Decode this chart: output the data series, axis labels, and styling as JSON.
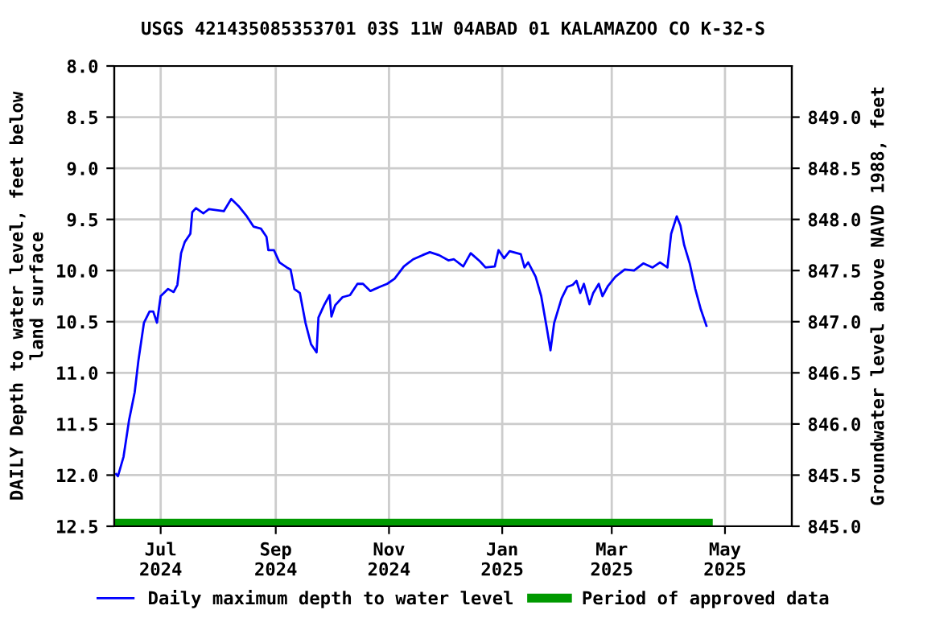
{
  "chart_data": {
    "type": "line",
    "title": "USGS 421435085353701 03S 11W 04ABAD 01 KALAMAZOO CO K-32-S",
    "ylabel": "DAILY Depth to water level, feet below\nland surface",
    "y2label": "Groundwater level above NAVD 1988, feet",
    "xlim": [
      "2024-06-06",
      "2025-06-06"
    ],
    "xticks": [
      {
        "value": "2024-07-01",
        "label": "Jul\n2024"
      },
      {
        "value": "2024-09-01",
        "label": "Sep\n2024"
      },
      {
        "value": "2024-11-01",
        "label": "Nov\n2024"
      },
      {
        "value": "2025-01-01",
        "label": "Jan\n2025"
      },
      {
        "value": "2025-03-01",
        "label": "Mar\n2025"
      },
      {
        "value": "2025-05-01",
        "label": "May\n2025"
      }
    ],
    "ylim": [
      12.5,
      8.0
    ],
    "yticks": [
      {
        "value": 8,
        "label": "8.0"
      },
      {
        "value": 8.5,
        "label": "8.5"
      },
      {
        "value": 9,
        "label": "9.0"
      },
      {
        "value": 9.5,
        "label": "9.5"
      },
      {
        "value": 10,
        "label": "10.0"
      },
      {
        "value": 10.5,
        "label": "10.5"
      },
      {
        "value": 11,
        "label": "11.0"
      },
      {
        "value": 11.5,
        "label": "11.5"
      },
      {
        "value": 12,
        "label": "12.0"
      },
      {
        "value": 12.5,
        "label": "12.5"
      }
    ],
    "y2lim": [
      845.0,
      849.5
    ],
    "y2ticks": [
      {
        "value": 845,
        "label": "845.0"
      },
      {
        "value": 845.5,
        "label": "845.5"
      },
      {
        "value": 846,
        "label": "846.0"
      },
      {
        "value": 846.5,
        "label": "846.5"
      },
      {
        "value": 847,
        "label": "847.0"
      },
      {
        "value": 847.5,
        "label": "847.5"
      },
      {
        "value": 848,
        "label": "848.0"
      },
      {
        "value": 848.5,
        "label": "848.5"
      },
      {
        "value": 849,
        "label": "849.0"
      }
    ],
    "grid": true,
    "legend": "bottom",
    "series": [
      {
        "name": "Daily maximum depth to water level",
        "color": "#0000ff",
        "x": [
          "2024-06-07",
          "2024-06-08",
          "2024-06-11",
          "2024-06-14",
          "2024-06-17",
          "2024-06-19",
          "2024-06-22",
          "2024-06-25",
          "2024-06-27",
          "2024-06-29",
          "2024-07-01",
          "2024-07-05",
          "2024-07-08",
          "2024-07-10",
          "2024-07-12",
          "2024-07-14",
          "2024-07-17",
          "2024-07-18",
          "2024-07-20",
          "2024-07-24",
          "2024-07-27",
          "2024-07-31",
          "2024-08-04",
          "2024-08-08",
          "2024-08-12",
          "2024-08-16",
          "2024-08-20",
          "2024-08-24",
          "2024-08-27",
          "2024-08-28",
          "2024-08-31",
          "2024-09-03",
          "2024-09-07",
          "2024-09-09",
          "2024-09-11",
          "2024-09-14",
          "2024-09-17",
          "2024-09-20",
          "2024-09-23",
          "2024-09-24",
          "2024-09-27",
          "2024-09-30",
          "2024-10-01",
          "2024-10-03",
          "2024-10-07",
          "2024-10-11",
          "2024-10-15",
          "2024-10-18",
          "2024-10-22",
          "2024-10-27",
          "2024-10-31",
          "2024-11-04",
          "2024-11-09",
          "2024-11-14",
          "2024-11-19",
          "2024-11-23",
          "2024-11-28",
          "2024-12-03",
          "2024-12-06",
          "2024-12-11",
          "2024-12-15",
          "2024-12-20",
          "2024-12-23",
          "2024-12-28",
          "2024-12-30",
          "2025-01-02",
          "2025-01-05",
          "2025-01-11",
          "2025-01-13",
          "2025-01-15",
          "2025-01-19",
          "2025-01-22",
          "2025-01-25",
          "2025-01-27",
          "2025-01-29",
          "2025-02-02",
          "2025-02-05",
          "2025-02-08",
          "2025-02-10",
          "2025-02-12",
          "2025-02-14",
          "2025-02-17",
          "2025-02-19",
          "2025-02-22",
          "2025-02-24",
          "2025-02-27",
          "2025-03-03",
          "2025-03-08",
          "2025-03-13",
          "2025-03-18",
          "2025-03-23",
          "2025-03-27",
          "2025-03-31",
          "2025-04-02",
          "2025-04-05",
          "2025-04-07",
          "2025-04-09",
          "2025-04-12",
          "2025-04-15",
          "2025-04-18",
          "2025-04-21"
        ],
        "values": [
          11.99,
          12.01,
          11.82,
          11.46,
          11.19,
          10.88,
          10.51,
          10.4,
          10.4,
          10.51,
          10.25,
          10.18,
          10.21,
          10.14,
          9.83,
          9.72,
          9.64,
          9.43,
          9.39,
          9.44,
          9.4,
          9.41,
          9.42,
          9.3,
          9.37,
          9.46,
          9.57,
          9.59,
          9.67,
          9.8,
          9.8,
          9.92,
          9.97,
          9.99,
          10.18,
          10.22,
          10.51,
          10.72,
          10.8,
          10.46,
          10.34,
          10.24,
          10.45,
          10.34,
          10.26,
          10.24,
          10.13,
          10.13,
          10.2,
          10.16,
          10.13,
          10.08,
          9.96,
          9.89,
          9.85,
          9.82,
          9.85,
          9.9,
          9.89,
          9.96,
          9.83,
          9.91,
          9.97,
          9.96,
          9.8,
          9.88,
          9.81,
          9.84,
          9.97,
          9.92,
          10.06,
          10.25,
          10.56,
          10.78,
          10.51,
          10.27,
          10.16,
          10.14,
          10.1,
          10.22,
          10.13,
          10.33,
          10.22,
          10.13,
          10.25,
          10.15,
          10.06,
          9.99,
          10.0,
          9.93,
          9.97,
          9.92,
          9.97,
          9.64,
          9.47,
          9.56,
          9.75,
          9.93,
          10.18,
          10.38,
          10.54
        ]
      },
      {
        "name": "Period of approved data",
        "color": "#009900",
        "x": [
          "2024-06-06",
          "2025-04-22"
        ],
        "values": [
          12.47,
          12.47
        ]
      }
    ]
  }
}
